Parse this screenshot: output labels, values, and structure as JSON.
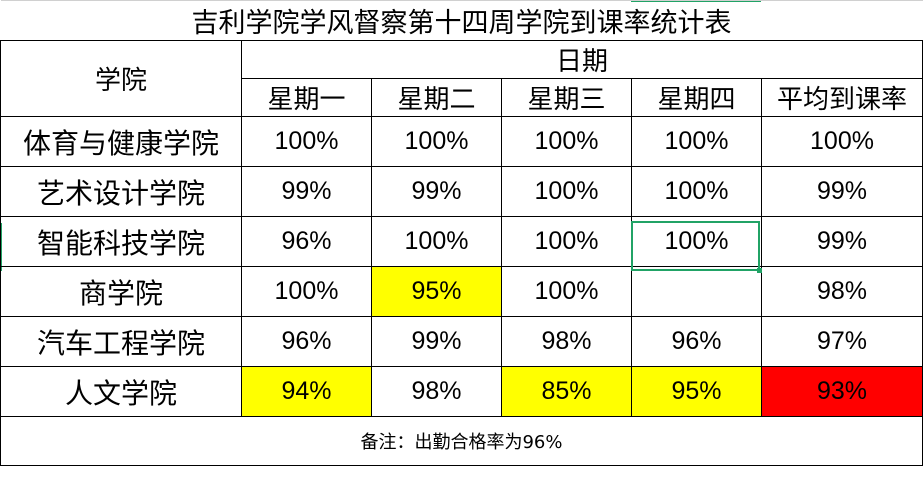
{
  "title": "吉利学院学风督察第十四周学院到课率统计表",
  "header": {
    "college": "学院",
    "date": "日期",
    "days": [
      "星期一",
      "星期二",
      "星期三",
      "星期四",
      "平均到课率"
    ]
  },
  "rows": [
    {
      "college": "体育与健康学院",
      "values": [
        "100%",
        "100%",
        "100%",
        "100%",
        "100%"
      ]
    },
    {
      "college": "艺术设计学院",
      "values": [
        "99%",
        "99%",
        "100%",
        "100%",
        "99%"
      ]
    },
    {
      "college": "智能科技学院",
      "values": [
        "96%",
        "100%",
        "100%",
        "100%",
        "99%"
      ]
    },
    {
      "college": "商学院",
      "values": [
        "100%",
        "95%",
        "100%",
        "",
        "98%"
      ]
    },
    {
      "college": "汽车工程学院",
      "values": [
        "96%",
        "99%",
        "98%",
        "96%",
        "97%"
      ]
    },
    {
      "college": "人文学院",
      "values": [
        "94%",
        "98%",
        "85%",
        "95%",
        "93%"
      ]
    }
  ],
  "highlights": {
    "yellow": "#ffff00",
    "red": "#ff0000",
    "selection": "#21a366"
  },
  "note": "备注：出勤合格率为96%"
}
